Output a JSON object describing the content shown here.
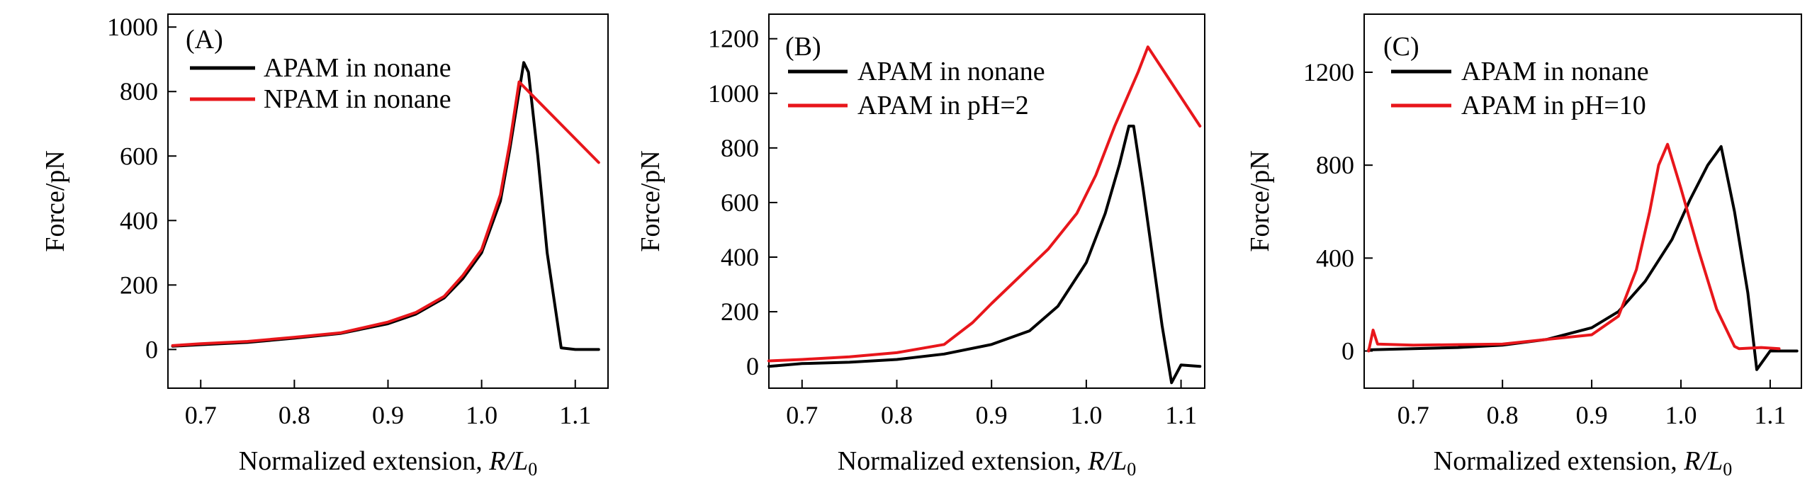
{
  "figure": {
    "background": "#ffffff"
  },
  "chart_data": [
    {
      "type": "line",
      "panel_label": "(A)",
      "xlabel": "Normalized extension, ",
      "xlabel_var": "R/L",
      "xlabel_sub": "0",
      "ylabel": "Force/pN",
      "xlim": [
        0.665,
        1.135
      ],
      "ylim": [
        -120,
        1040
      ],
      "xticks": [
        0.7,
        0.8,
        0.9,
        1.0,
        1.1
      ],
      "xtick_labels": [
        "0.7",
        "0.8",
        "0.9",
        "1.0",
        "1.1"
      ],
      "yticks": [
        0,
        200,
        400,
        600,
        800,
        1000
      ],
      "ytick_labels": [
        "0",
        "200",
        "400",
        "600",
        "800",
        "1000"
      ],
      "legend_position": "top-left",
      "series": [
        {
          "name": "APAM in nonane",
          "color": "#000000",
          "x": [
            0.67,
            0.7,
            0.75,
            0.8,
            0.85,
            0.9,
            0.93,
            0.96,
            0.98,
            1.0,
            1.02,
            1.03,
            1.04,
            1.045,
            1.05,
            1.06,
            1.07,
            1.085,
            1.1,
            1.125
          ],
          "y": [
            10,
            15,
            22,
            35,
            50,
            80,
            110,
            160,
            220,
            300,
            460,
            620,
            800,
            890,
            860,
            600,
            300,
            5,
            0,
            0
          ]
        },
        {
          "name": "NPAM in nonane",
          "color": "#e8161b",
          "x": [
            0.67,
            0.7,
            0.75,
            0.8,
            0.85,
            0.9,
            0.93,
            0.96,
            0.98,
            1.0,
            1.02,
            1.03,
            1.04,
            1.125
          ],
          "y": [
            12,
            18,
            25,
            38,
            52,
            85,
            115,
            165,
            230,
            310,
            480,
            640,
            830,
            580
          ]
        }
      ]
    },
    {
      "type": "line",
      "panel_label": "(B)",
      "xlabel": "Normalized extension, ",
      "xlabel_var": "R/L",
      "xlabel_sub": "0",
      "ylabel": "Force/pN",
      "xlim": [
        0.665,
        1.125
      ],
      "ylim": [
        -80,
        1290
      ],
      "xticks": [
        0.7,
        0.8,
        0.9,
        1.0,
        1.1
      ],
      "xtick_labels": [
        "0.7",
        "0.8",
        "0.9",
        "1.0",
        "1.1"
      ],
      "yticks": [
        0,
        200,
        400,
        600,
        800,
        1000,
        1200
      ],
      "ytick_labels": [
        "0",
        "200",
        "400",
        "600",
        "800",
        "1000",
        "1200"
      ],
      "legend_position": "top-left",
      "series": [
        {
          "name": "APAM in nonane",
          "color": "#000000",
          "x": [
            0.665,
            0.7,
            0.75,
            0.8,
            0.85,
            0.9,
            0.94,
            0.97,
            1.0,
            1.02,
            1.035,
            1.045,
            1.05,
            1.06,
            1.07,
            1.08,
            1.09,
            1.1,
            1.12
          ],
          "y": [
            0,
            10,
            15,
            25,
            45,
            80,
            130,
            220,
            380,
            560,
            740,
            880,
            880,
            650,
            400,
            150,
            -60,
            5,
            0
          ]
        },
        {
          "name": "APAM in pH=2",
          "color": "#e8161b",
          "x": [
            0.665,
            0.7,
            0.75,
            0.8,
            0.85,
            0.88,
            0.9,
            0.93,
            0.96,
            0.99,
            1.01,
            1.03,
            1.045,
            1.055,
            1.065,
            1.12
          ],
          "y": [
            20,
            25,
            35,
            50,
            80,
            160,
            230,
            330,
            430,
            560,
            700,
            880,
            1000,
            1080,
            1170,
            880
          ]
        }
      ]
    },
    {
      "type": "line",
      "panel_label": "(C)",
      "xlabel": "Normalized extension, ",
      "xlabel_var": "R/L",
      "xlabel_sub": "0",
      "ylabel": "Force/pN",
      "xlim": [
        0.645,
        1.135
      ],
      "ylim": [
        -160,
        1450
      ],
      "xticks": [
        0.7,
        0.8,
        0.9,
        1.0,
        1.1
      ],
      "xtick_labels": [
        "0.7",
        "0.8",
        "0.9",
        "1.0",
        "1.1"
      ],
      "yticks": [
        0,
        400,
        800,
        1200
      ],
      "ytick_labels": [
        "0",
        "400",
        "800",
        "1200"
      ],
      "legend_position": "top-left",
      "series": [
        {
          "name": "APAM in nonane",
          "color": "#000000",
          "x": [
            0.65,
            0.7,
            0.75,
            0.8,
            0.85,
            0.9,
            0.93,
            0.96,
            0.99,
            1.01,
            1.03,
            1.045,
            1.06,
            1.075,
            1.085,
            1.1,
            1.13
          ],
          "y": [
            5,
            10,
            15,
            25,
            50,
            100,
            170,
            300,
            480,
            650,
            800,
            880,
            600,
            250,
            -80,
            0,
            0
          ]
        },
        {
          "name": "APAM in pH=10",
          "color": "#e8161b",
          "x": [
            0.65,
            0.655,
            0.66,
            0.7,
            0.8,
            0.9,
            0.93,
            0.95,
            0.965,
            0.975,
            0.985,
            1.0,
            1.02,
            1.04,
            1.06,
            1.065,
            1.09,
            1.11
          ],
          "y": [
            0,
            90,
            30,
            25,
            30,
            70,
            150,
            350,
            600,
            800,
            890,
            700,
            430,
            180,
            20,
            10,
            15,
            10
          ]
        }
      ]
    }
  ]
}
